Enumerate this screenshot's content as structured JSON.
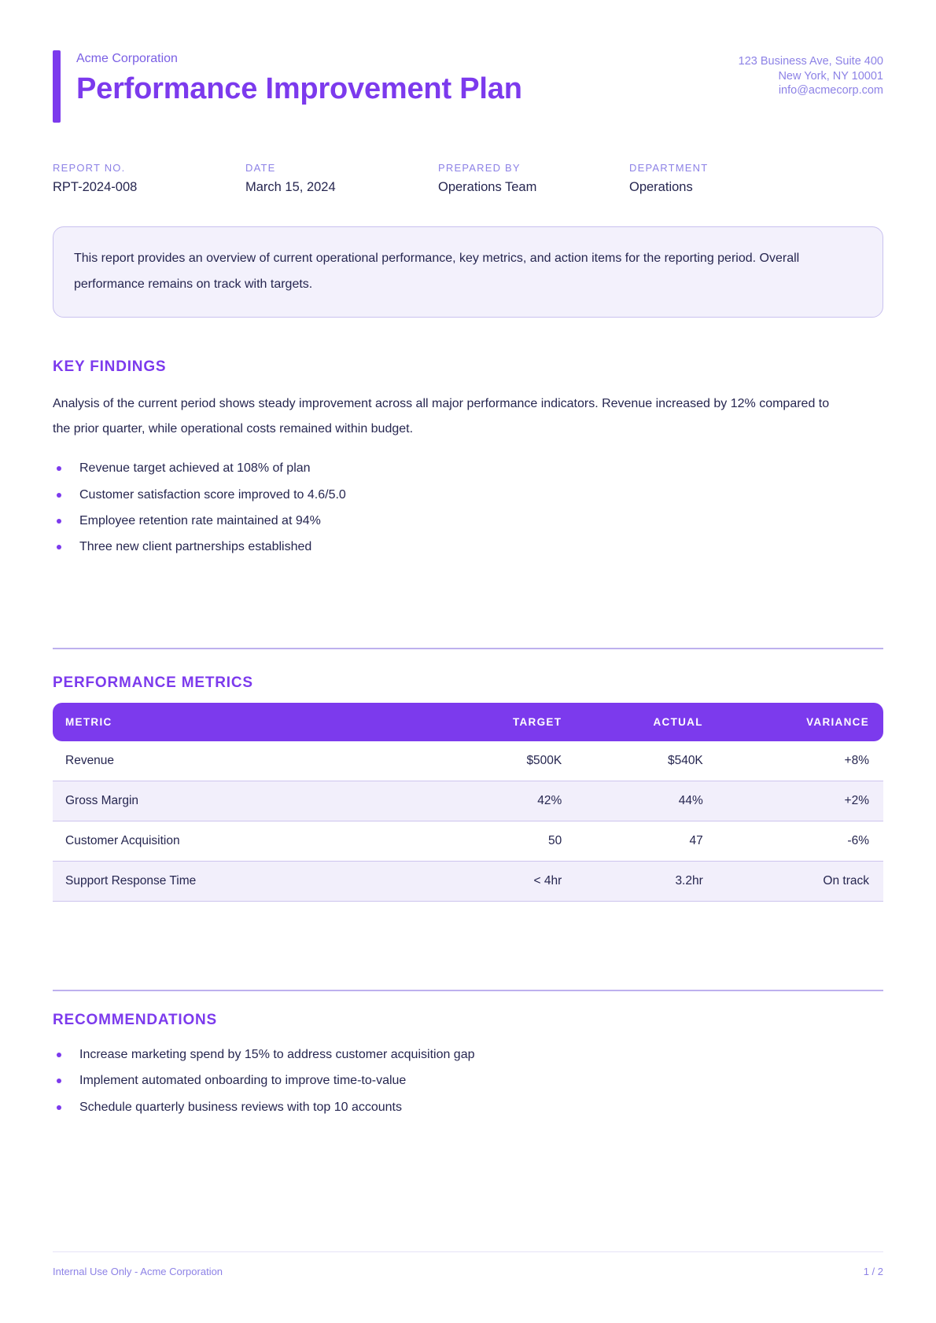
{
  "header": {
    "company": "Acme Corporation",
    "title": "Performance Improvement Plan",
    "address_lines": [
      "123 Business Ave, Suite 400",
      "New York, NY 10001",
      "info@acmecorp.com"
    ]
  },
  "meta": {
    "fields": [
      {
        "label": "REPORT NO.",
        "value": "RPT-2024-008"
      },
      {
        "label": "DATE",
        "value": "March 15, 2024"
      },
      {
        "label": "PREPARED BY",
        "value": "Operations Team"
      },
      {
        "label": "DEPARTMENT",
        "value": "Operations"
      }
    ]
  },
  "summary": {
    "text": "This report provides an overview of current operational performance, key metrics, and action items for the reporting period. Overall performance remains on track with targets."
  },
  "key_findings": {
    "heading": "KEY FINDINGS",
    "paragraph": "Analysis of the current period shows steady improvement across all major performance indicators. Revenue increased by 12% compared to the prior quarter, while operational costs remained within budget.",
    "bullets": [
      "Revenue target achieved at 108% of plan",
      "Customer satisfaction score improved to 4.6/5.0",
      "Employee retention rate maintained at 94%",
      "Three new client partnerships established"
    ]
  },
  "metrics": {
    "heading": "PERFORMANCE METRICS",
    "table": {
      "headers": [
        "METRIC",
        "TARGET",
        "ACTUAL",
        "VARIANCE"
      ],
      "rows": [
        [
          "Revenue",
          "$500K",
          "$540K",
          "+8%"
        ],
        [
          "Gross Margin",
          "42%",
          "44%",
          "+2%"
        ],
        [
          "Customer Acquisition",
          "50",
          "47",
          "-6%"
        ],
        [
          "Support Response Time",
          "< 4hr",
          "3.2hr",
          "On track"
        ]
      ]
    }
  },
  "recommendations": {
    "heading": "RECOMMENDATIONS",
    "bullets": [
      "Increase marketing spend by 15% to address customer acquisition gap",
      "Implement automated onboarding to improve time-to-value",
      "Schedule quarterly business reviews with top 10 accounts"
    ]
  },
  "footer": {
    "left": "Internal Use Only - Acme Corporation",
    "right": "1 / 2"
  },
  "colors": {
    "accent": "#7c3aed",
    "accent_mid": "#7a5fe4",
    "accent_light": "#8d82e6",
    "ink": "#262650",
    "panel_bg": "#f3f1fc",
    "panel_border": "#c9c1ef",
    "stripe_bg": "#f2effb",
    "stripe_border": "#cdc4ee",
    "divider": "#bdb0ee",
    "footer_divider": "#e6e2f7",
    "table_header_text": "#ffffff"
  }
}
